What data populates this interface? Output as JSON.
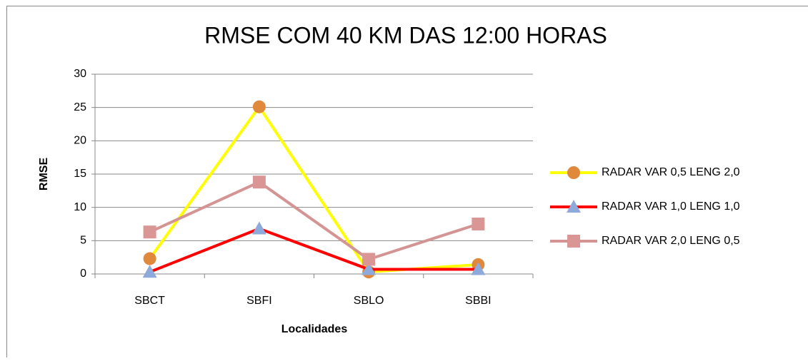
{
  "chart_data": {
    "type": "line",
    "title": "RMSE COM 40 KM DAS 12:00 HORAS",
    "xlabel": "Localidades",
    "ylabel": "RMSE",
    "categories": [
      "SBCT",
      "SBFI",
      "SBLO",
      "SBBI"
    ],
    "series": [
      {
        "name": "RADAR VAR 0,5 LENG 2,0",
        "color": "#ffff00",
        "marker": "circle",
        "marker_color": "#e0893c",
        "values": [
          2.3,
          25.1,
          0.3,
          1.4
        ]
      },
      {
        "name": "RADAR VAR 1,0 LENG 1,0",
        "color": "#ff0000",
        "marker": "triangle",
        "marker_color": "#8eaadb",
        "values": [
          0.3,
          6.8,
          0.7,
          0.7
        ]
      },
      {
        "name": "RADAR VAR 2,0 LENG 0,5",
        "color": "#d49494",
        "marker": "square",
        "marker_color": "#d99694",
        "values": [
          6.3,
          13.8,
          2.2,
          7.5
        ]
      }
    ],
    "ylim": [
      0,
      30
    ],
    "yticks": [
      0,
      5,
      10,
      15,
      20,
      25,
      30
    ],
    "grid": true,
    "legend": "right"
  }
}
